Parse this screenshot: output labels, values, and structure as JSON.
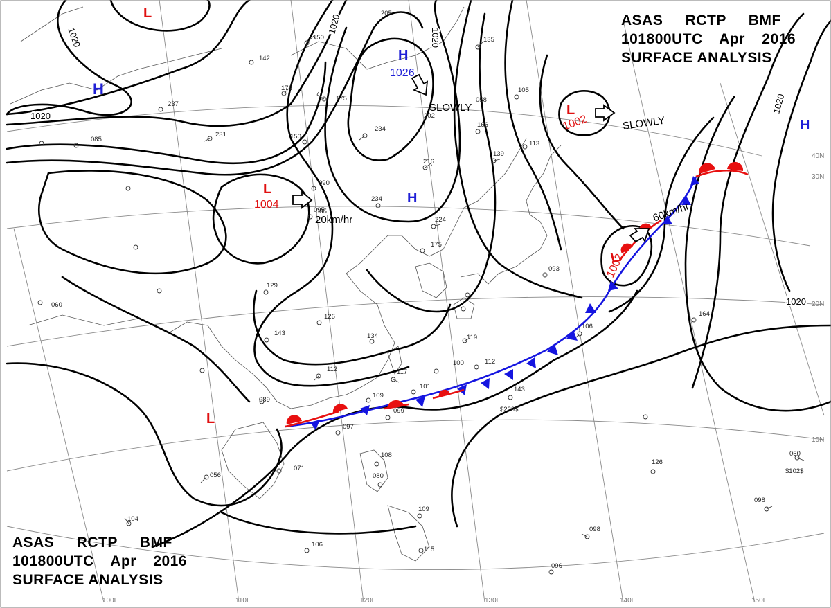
{
  "header_top": {
    "line1": "ASAS RCTP BMF",
    "line2": "101800UTC Apr 2016",
    "line3": "SURFACE ANALYSIS"
  },
  "header_bottom": {
    "line1": "ASAS RCTP BMF",
    "line2": "101800UTC Apr 2016",
    "line3": "SURFACE ANALYSIS"
  },
  "colors": {
    "high": "#1f1fd6",
    "low": "#e01010",
    "cold_front": "#1515e0",
    "warm_front": "#e81010",
    "isobar": "#000000",
    "grid": "#8a8a8a"
  },
  "isobar_labels": [
    "1020",
    "1020",
    "1020",
    "1020",
    "1020"
  ],
  "pressure_centers": [
    {
      "type": "H",
      "value": "1026"
    },
    {
      "type": "H",
      "value": ""
    },
    {
      "type": "H",
      "value": ""
    },
    {
      "type": "H",
      "value": ""
    },
    {
      "type": "L",
      "value": "1004"
    },
    {
      "type": "L",
      "value": "1002"
    },
    {
      "type": "L",
      "value": "1002"
    },
    {
      "type": "L",
      "value": ""
    },
    {
      "type": "L",
      "value": ""
    }
  ],
  "motions": [
    "SLOWLY",
    "SLOWLY",
    "20km/hr",
    "60km/hr"
  ],
  "lat_labels": [
    "40N",
    "30N",
    "20N",
    "10N"
  ],
  "lon_labels": [
    "100E",
    "110E",
    "120E",
    "130E",
    "140E",
    "150E"
  ],
  "station_codes": [
    "205",
    "150",
    "142",
    "172",
    "175",
    "237",
    "231",
    "150",
    "090",
    "085",
    "234",
    "216",
    "234",
    "224",
    "175",
    "135",
    "166",
    "139",
    "113",
    "105",
    "093",
    "129",
    "126",
    "143",
    "134",
    "119",
    "112",
    "117",
    "101",
    "109",
    "099",
    "100",
    "112",
    "143",
    "106",
    "164",
    "089",
    "097",
    "071",
    "056",
    "104",
    "106",
    "108",
    "080",
    "109",
    "115",
    "096",
    "098",
    "098",
    "126",
    "050",
    "060",
    "058",
    "202",
    "095",
    "085"
  ],
  "station_extra": [
    "$230$",
    "$102$"
  ]
}
